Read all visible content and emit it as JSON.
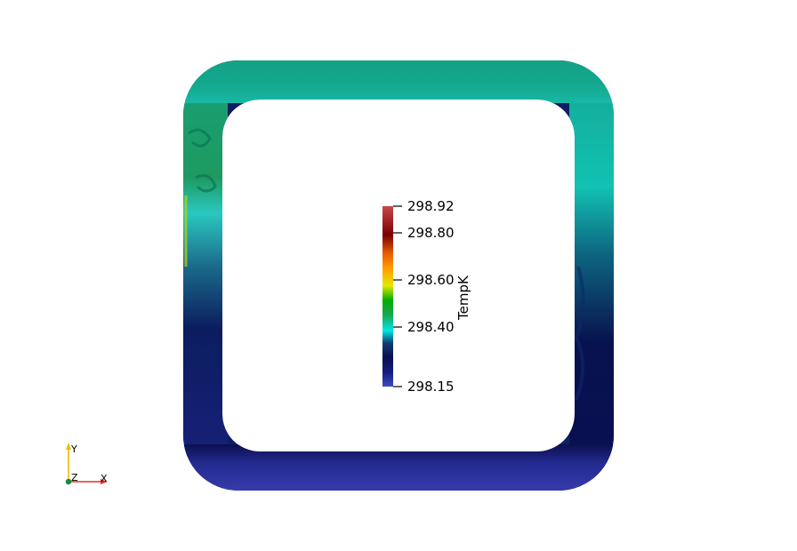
{
  "scene": {
    "colormap": {
      "title": "TempK",
      "range": [
        298.15,
        298.92
      ],
      "ticks": [
        "298.92",
        "298.80",
        "298.60",
        "298.40",
        "298.15"
      ],
      "stops": [
        "#3b4cc0",
        "#1b1b8a",
        "#0b0f5a",
        "#0f3a6e",
        "#1c7a8a",
        "#00e5e5",
        "#19b34d",
        "#00b000",
        "#e6e600",
        "#ff8c00",
        "#e65c00",
        "#800000",
        "#b22222",
        "#c84040"
      ]
    },
    "orientation_axes": {
      "x_label": "X",
      "y_label": "Y",
      "z_label": "Z",
      "x_color": "#e03020",
      "y_color": "#e6c000",
      "z_color": "#1a8a3a"
    },
    "field_colors": {
      "top": "#16a38a",
      "top_right": "#10c3b0",
      "right_lower": "#0a0f55",
      "bottom": "#3238a8",
      "left_upper": "#1c9a70",
      "left_mid": "#22c4c0",
      "left_lower": "#0d1e62"
    }
  }
}
